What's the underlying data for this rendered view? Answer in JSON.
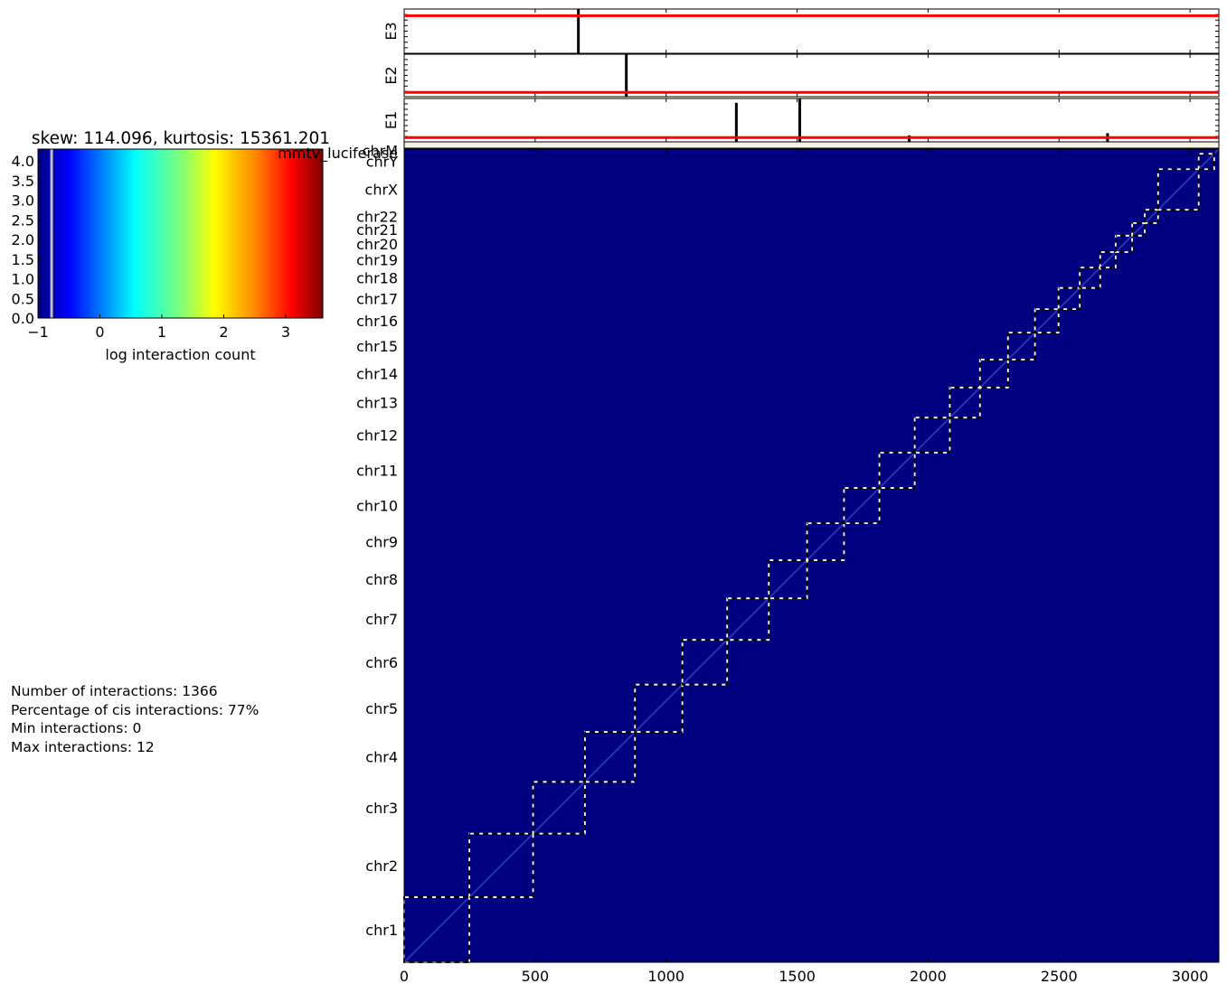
{
  "chart_data": [
    {
      "type": "heatmap",
      "title": "",
      "xlabel": "",
      "ylabel": "",
      "xlim": [
        0,
        3110
      ],
      "ylim": [
        0,
        3110
      ],
      "x_ticks": [
        0,
        500,
        1000,
        1500,
        2000,
        2500,
        3000
      ],
      "background_color": "#000080",
      "chromosomes": [
        {
          "name": "chr1",
          "start": 0,
          "end": 249
        },
        {
          "name": "chr2",
          "start": 249,
          "end": 492
        },
        {
          "name": "chr3",
          "start": 492,
          "end": 690
        },
        {
          "name": "chr4",
          "start": 690,
          "end": 881
        },
        {
          "name": "chr5",
          "start": 881,
          "end": 1062
        },
        {
          "name": "chr6",
          "start": 1062,
          "end": 1233
        },
        {
          "name": "chr7",
          "start": 1233,
          "end": 1392
        },
        {
          "name": "chr8",
          "start": 1392,
          "end": 1538
        },
        {
          "name": "chr9",
          "start": 1538,
          "end": 1679
        },
        {
          "name": "chr10",
          "start": 1679,
          "end": 1814
        },
        {
          "name": "chr11",
          "start": 1814,
          "end": 1949
        },
        {
          "name": "chr12",
          "start": 1949,
          "end": 2083
        },
        {
          "name": "chr13",
          "start": 2083,
          "end": 2198
        },
        {
          "name": "chr14",
          "start": 2198,
          "end": 2305
        },
        {
          "name": "chr15",
          "start": 2305,
          "end": 2408
        },
        {
          "name": "chr16",
          "start": 2408,
          "end": 2498
        },
        {
          "name": "chr17",
          "start": 2498,
          "end": 2579
        },
        {
          "name": "chr18",
          "start": 2579,
          "end": 2657
        },
        {
          "name": "chr19",
          "start": 2657,
          "end": 2716
        },
        {
          "name": "chr20",
          "start": 2716,
          "end": 2779
        },
        {
          "name": "chr21",
          "start": 2779,
          "end": 2827
        },
        {
          "name": "chr22",
          "start": 2827,
          "end": 2878
        },
        {
          "name": "chrX",
          "start": 2878,
          "end": 3033
        },
        {
          "name": "chrY",
          "start": 3033,
          "end": 3092
        },
        {
          "name": "mmtv_luciferase",
          "start": 3092,
          "end": 3100
        },
        {
          "name": "chrM",
          "start": 3100,
          "end": 3110
        }
      ],
      "chrom_labels": [
        "chr1",
        "chr2",
        "chr3",
        "chr4",
        "chr5",
        "chr6",
        "chr7",
        "chr8",
        "chr9",
        "chr10",
        "chr11",
        "chr12",
        "chr13",
        "chr14",
        "chr15",
        "chr16",
        "chr17",
        "chr18",
        "chr19",
        "chr20",
        "chr21",
        "chr22",
        "chrX",
        "chrY",
        "mmtv_luciferase",
        "chrM"
      ],
      "chrom_label_texts": {
        "mmtv_luciferase": "mmtv_luciferase",
        "chrM": "chrM"
      }
    },
    {
      "type": "heatmap",
      "title": "skew: 114.096, kurtosis: 15361.201",
      "xlabel": "log interaction count",
      "ylabel": "",
      "xlim": [
        -1,
        3.6
      ],
      "ylim": [
        0,
        4.3
      ],
      "x_ticks": [
        -1,
        0,
        1,
        2,
        3
      ],
      "y_ticks": [
        0.0,
        0.5,
        1.0,
        1.5,
        2.0,
        2.5,
        3.0,
        3.5,
        4.0
      ],
      "colormap": "jet",
      "histogram": {
        "x": [
          -0.78
        ],
        "values": [
          4.3
        ]
      }
    },
    {
      "type": "bar",
      "ylabel": "E3",
      "xlim": [
        0,
        3110
      ],
      "redline_level": 0.85,
      "x": [
        665
      ],
      "values": [
        1.0
      ]
    },
    {
      "type": "bar",
      "ylabel": "E2",
      "xlim": [
        0,
        3110
      ],
      "redline_level": 0.1,
      "x": [
        848
      ],
      "values": [
        1.0
      ]
    },
    {
      "type": "bar",
      "ylabel": "E1",
      "xlim": [
        0,
        3110
      ],
      "redline_level": 0.1,
      "x": [
        1268,
        1510,
        1928,
        2685
      ],
      "values": [
        0.9,
        1.0,
        0.15,
        0.2
      ]
    }
  ],
  "stats": {
    "interactions": "Number of interactions: 1366",
    "cis": "Percentage of cis interactions: 77%",
    "min": "Min interactions: 0",
    "max": "Max interactions: 12"
  },
  "colors": {
    "redline": "#ff0000",
    "boundary": "#ffffff",
    "diagonal": "#3b63e0"
  }
}
